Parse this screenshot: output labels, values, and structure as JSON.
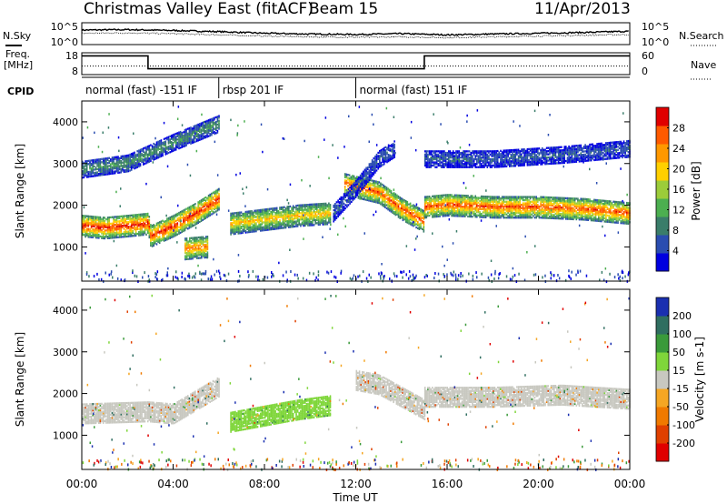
{
  "header": {
    "station": "Christmas Valley East (fitACF)",
    "beam": "Beam 15",
    "date": "11/Apr/2013"
  },
  "noise_panel": {
    "left_label": "N.Sky",
    "left_ticks": [
      "10^5",
      "10^0"
    ],
    "right_ticks": [
      "10^5",
      "10^0"
    ],
    "right_label": "N.Search"
  },
  "freq_panel": {
    "left_label_1": "Freq.",
    "left_label_2": "[MHz]",
    "left_ticks": [
      "18",
      "8"
    ],
    "right_ticks": [
      "60",
      "0"
    ],
    "right_label": "Nave"
  },
  "cpid": {
    "label": "CPID",
    "segments": [
      {
        "text": "normal (fast) -151 IF",
        "start_hour": 0,
        "end_hour": 6
      },
      {
        "text": "rbsp 201 IF",
        "start_hour": 6,
        "end_hour": 12
      },
      {
        "text": "normal (fast) 151 IF",
        "start_hour": 12,
        "end_hour": 24
      }
    ]
  },
  "power_panel": {
    "ylabel": "Slant Range [km]",
    "yticks": [
      "1000",
      "2000",
      "3000",
      "4000"
    ],
    "colorbar_label": "Power [dB]",
    "colorbar_ticks": [
      "28",
      "24",
      "20",
      "16",
      "12",
      "8",
      "4"
    ]
  },
  "velocity_panel": {
    "ylabel": "Slant Range [km]",
    "yticks": [
      "1000",
      "2000",
      "3000",
      "4000"
    ],
    "colorbar_label": "Velocity [m s-1]",
    "colorbar_ticks": [
      "200",
      "100",
      "50",
      "15",
      "-15",
      "-50",
      "-100",
      "-200"
    ]
  },
  "x_axis": {
    "label": "Time UT",
    "ticks": [
      "00:00",
      "04:00",
      "08:00",
      "12:00",
      "16:00",
      "20:00",
      "00:00"
    ]
  },
  "colors": {
    "power_scale": [
      "#0000e0",
      "#2a4db0",
      "#3a7d6a",
      "#4caf50",
      "#9ccc3a",
      "#ffd000",
      "#ff9800",
      "#ff5a00",
      "#e00000"
    ],
    "velocity_scale": [
      "#1a2fb0",
      "#2f6e60",
      "#3a9a3a",
      "#7fd63a",
      "#c8c8c0",
      "#f5a623",
      "#f07a00",
      "#e04000",
      "#e00000"
    ]
  },
  "chart_data": [
    {
      "type": "line",
      "title": "N.Sky / N.Search",
      "x_unit": "hour UT",
      "ylim_log10": [
        0,
        5
      ],
      "series": [
        {
          "name": "N.Sky",
          "x": [
            0,
            2,
            4,
            6,
            8,
            10,
            12,
            14,
            16,
            18,
            20,
            22,
            24
          ],
          "values_log10": [
            3.4,
            3.5,
            3.3,
            3.0,
            2.6,
            2.4,
            2.3,
            2.5,
            2.2,
            2.4,
            2.6,
            2.8,
            3.1
          ]
        },
        {
          "name": "N.Search",
          "x": [
            0,
            2,
            4,
            6,
            8,
            10,
            12,
            14,
            16,
            18,
            20,
            22,
            24
          ],
          "values_log10": [
            2.6,
            2.7,
            2.5,
            2.2,
            1.9,
            1.7,
            1.6,
            1.7,
            1.5,
            1.7,
            1.9,
            2.1,
            2.3
          ]
        }
      ]
    },
    {
      "type": "line",
      "title": "Freq / Nave",
      "x_unit": "hour UT",
      "series": [
        {
          "name": "Freq.",
          "unit": "MHz",
          "x": [
            0,
            2.9,
            2.9,
            15.0,
            15.0,
            24
          ],
          "values": [
            17.3,
            17.3,
            10.2,
            10.2,
            17.3,
            17.3
          ]
        },
        {
          "name": "Nave",
          "x": [
            0,
            24
          ],
          "values": [
            22,
            22
          ]
        }
      ]
    },
    {
      "type": "heatmap",
      "title": "Power [dB]",
      "x_unit": "hour UT",
      "y_unit": "km",
      "xlim": [
        0,
        24
      ],
      "ylim": [
        180,
        4500
      ],
      "zlim": [
        0,
        30
      ],
      "bands": [
        {
          "feature": "main echo",
          "x": [
            0.0,
            1.0,
            2.0,
            2.9,
            3.0,
            4.0,
            5.0,
            6.0
          ],
          "range_km": [
            1500,
            1450,
            1500,
            1550,
            1250,
            1500,
            1800,
            2150
          ],
          "peak_db": 28
        },
        {
          "feature": "upper echo",
          "x": [
            0.0,
            2.0,
            4.0,
            6.0
          ],
          "range_km": [
            2850,
            3000,
            3500,
            3950
          ],
          "peak_db": 10
        },
        {
          "feature": "low echo",
          "x": [
            4.5,
            5.5
          ],
          "range_km": [
            950,
            1000
          ],
          "peak_db": 24
        },
        {
          "feature": "rbsp echo",
          "x": [
            6.5,
            8.0,
            9.5,
            10.9
          ],
          "range_km": [
            1550,
            1650,
            1750,
            1800
          ],
          "peak_db": 20
        },
        {
          "feature": "rising echo",
          "x": [
            11.5,
            13.0,
            14.0,
            15.0
          ],
          "range_km": [
            2500,
            2300,
            1900,
            1600
          ],
          "peak_db": 26
        },
        {
          "feature": "tongue",
          "x": [
            11.0,
            12.0,
            13.0,
            13.7
          ],
          "range_km": [
            1800,
            2400,
            3100,
            3350
          ],
          "peak_db": 6
        },
        {
          "feature": "night band",
          "x": [
            15.0,
            16.0,
            18.0,
            20.0,
            22.0,
            24.0
          ],
          "range_km": [
            1950,
            2000,
            1950,
            1950,
            1900,
            1800
          ],
          "peak_db": 26
        },
        {
          "feature": "night upper",
          "x": [
            15.0,
            18.0,
            21.0,
            24.0
          ],
          "range_km": [
            3100,
            3100,
            3200,
            3350
          ],
          "peak_db": 6
        }
      ]
    },
    {
      "type": "heatmap",
      "title": "Velocity [m s-1]",
      "x_unit": "hour UT",
      "y_unit": "km",
      "xlim": [
        0,
        24
      ],
      "ylim": [
        180,
        4500
      ],
      "zlim": [
        -200,
        200
      ],
      "bands": [
        {
          "feature": "main echo",
          "x": [
            0.0,
            2.9,
            4.0,
            6.0
          ],
          "range_km": [
            1500,
            1550,
            1500,
            2150
          ],
          "velocity": 0
        },
        {
          "feature": "rbsp echo",
          "x": [
            6.5,
            8.0,
            9.5,
            10.9
          ],
          "range_km": [
            1300,
            1450,
            1600,
            1700
          ],
          "velocity": 30
        },
        {
          "feature": "rising echo",
          "x": [
            12.0,
            13.0,
            14.0,
            15.0
          ],
          "range_km": [
            2300,
            2200,
            1900,
            1600
          ],
          "velocity": 0
        },
        {
          "feature": "night band",
          "x": [
            15.0,
            18.0,
            21.0,
            24.0
          ],
          "range_km": [
            1900,
            1900,
            1950,
            1850
          ],
          "velocity": 0
        }
      ]
    }
  ]
}
